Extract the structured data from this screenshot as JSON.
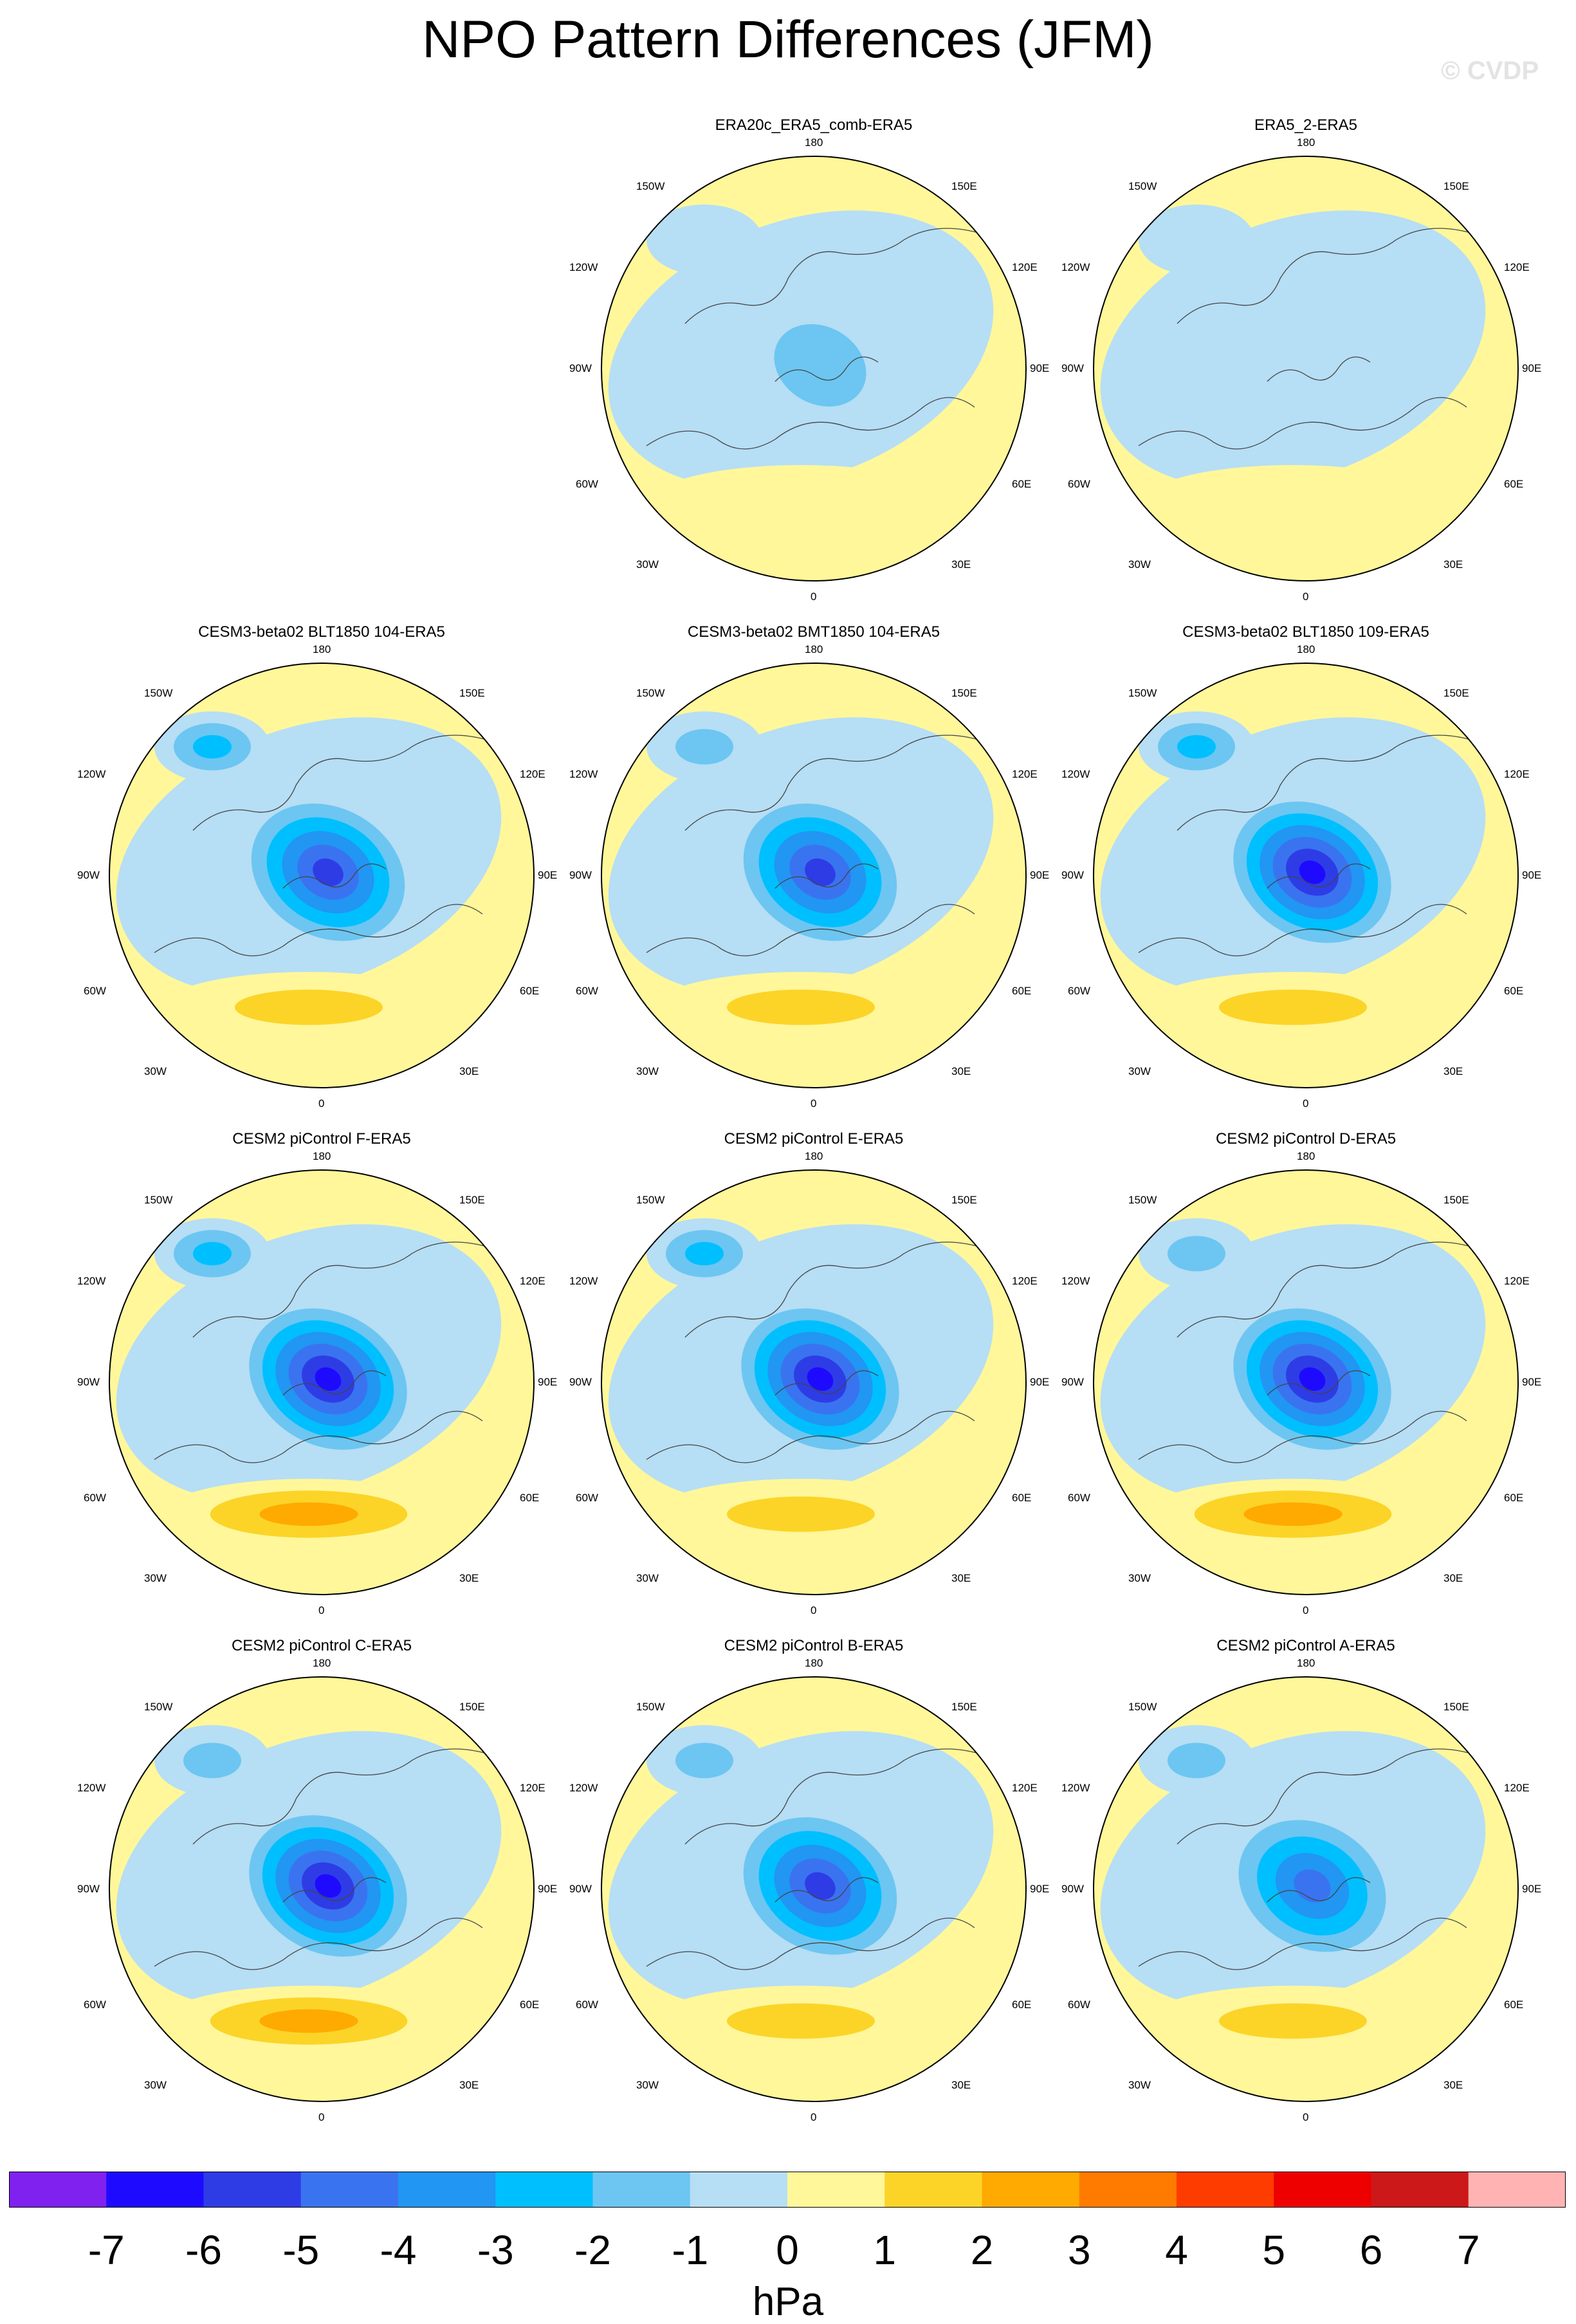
{
  "title": "NPO Pattern Differences (JFM)",
  "watermark": "© CVDP",
  "longitude_labels": {
    "top": "180",
    "bottom": "0",
    "left": "90W",
    "right": "90E",
    "upper_left_outer": "150W",
    "upper_left_inner": "120W",
    "upper_right_outer": "150E",
    "upper_right_inner": "120E",
    "lower_left_inner": "60W",
    "lower_left_outer": "30W",
    "lower_right_inner": "60E",
    "lower_right_outer": "30E"
  },
  "panels": [
    {
      "title": "ERA20c_ERA5_comb-ERA5",
      "max_low": -1.5,
      "north_pacific_low": -1,
      "atlantic_high": 0.5
    },
    {
      "title": "ERA5_2-ERA5",
      "max_low": -0.5,
      "north_pacific_low": -0.5,
      "atlantic_high": 0.3
    },
    {
      "title": "CESM3-beta02 BLT1850 104-ERA5",
      "max_low": -5.5,
      "north_pacific_low": -2.5,
      "atlantic_high": 1.5
    },
    {
      "title": "CESM3-beta02 BMT1850 104-ERA5",
      "max_low": -5.5,
      "north_pacific_low": -2,
      "atlantic_high": 2
    },
    {
      "title": "CESM3-beta02 BLT1850 109-ERA5",
      "max_low": -6.5,
      "north_pacific_low": -3,
      "atlantic_high": 2
    },
    {
      "title": "CESM2 piControl F-ERA5",
      "max_low": -7,
      "north_pacific_low": -3,
      "atlantic_high": 2.5
    },
    {
      "title": "CESM2 piControl E-ERA5",
      "max_low": -7,
      "north_pacific_low": -3,
      "atlantic_high": 1.5
    },
    {
      "title": "CESM2 piControl D-ERA5",
      "max_low": -6.5,
      "north_pacific_low": -2,
      "atlantic_high": 2.5
    },
    {
      "title": "CESM2 piControl C-ERA5",
      "max_low": -7,
      "north_pacific_low": -2,
      "atlantic_high": 3
    },
    {
      "title": "CESM2 piControl B-ERA5",
      "max_low": -6,
      "north_pacific_low": -2,
      "atlantic_high": 2
    },
    {
      "title": "CESM2 piControl A-ERA5",
      "max_low": -4.5,
      "north_pacific_low": -1.5,
      "atlantic_high": 1.5
    }
  ],
  "colorbar": {
    "labels": [
      "-7",
      "-6",
      "-5",
      "-4",
      "-3",
      "-2",
      "-1",
      "0",
      "1",
      "2",
      "3",
      "4",
      "5",
      "6",
      "7"
    ],
    "colors": [
      "#8021ef",
      "#1e0bff",
      "#2e3ce6",
      "#3a73ef",
      "#2196f3",
      "#00bfff",
      "#6cc6f1",
      "#b6def5",
      "#fff79a",
      "#fcd428",
      "#ffaa00",
      "#ff7b00",
      "#ff3c00",
      "#ee0000",
      "#cc1818",
      "#ffb3b3"
    ],
    "units": "hPa"
  }
}
